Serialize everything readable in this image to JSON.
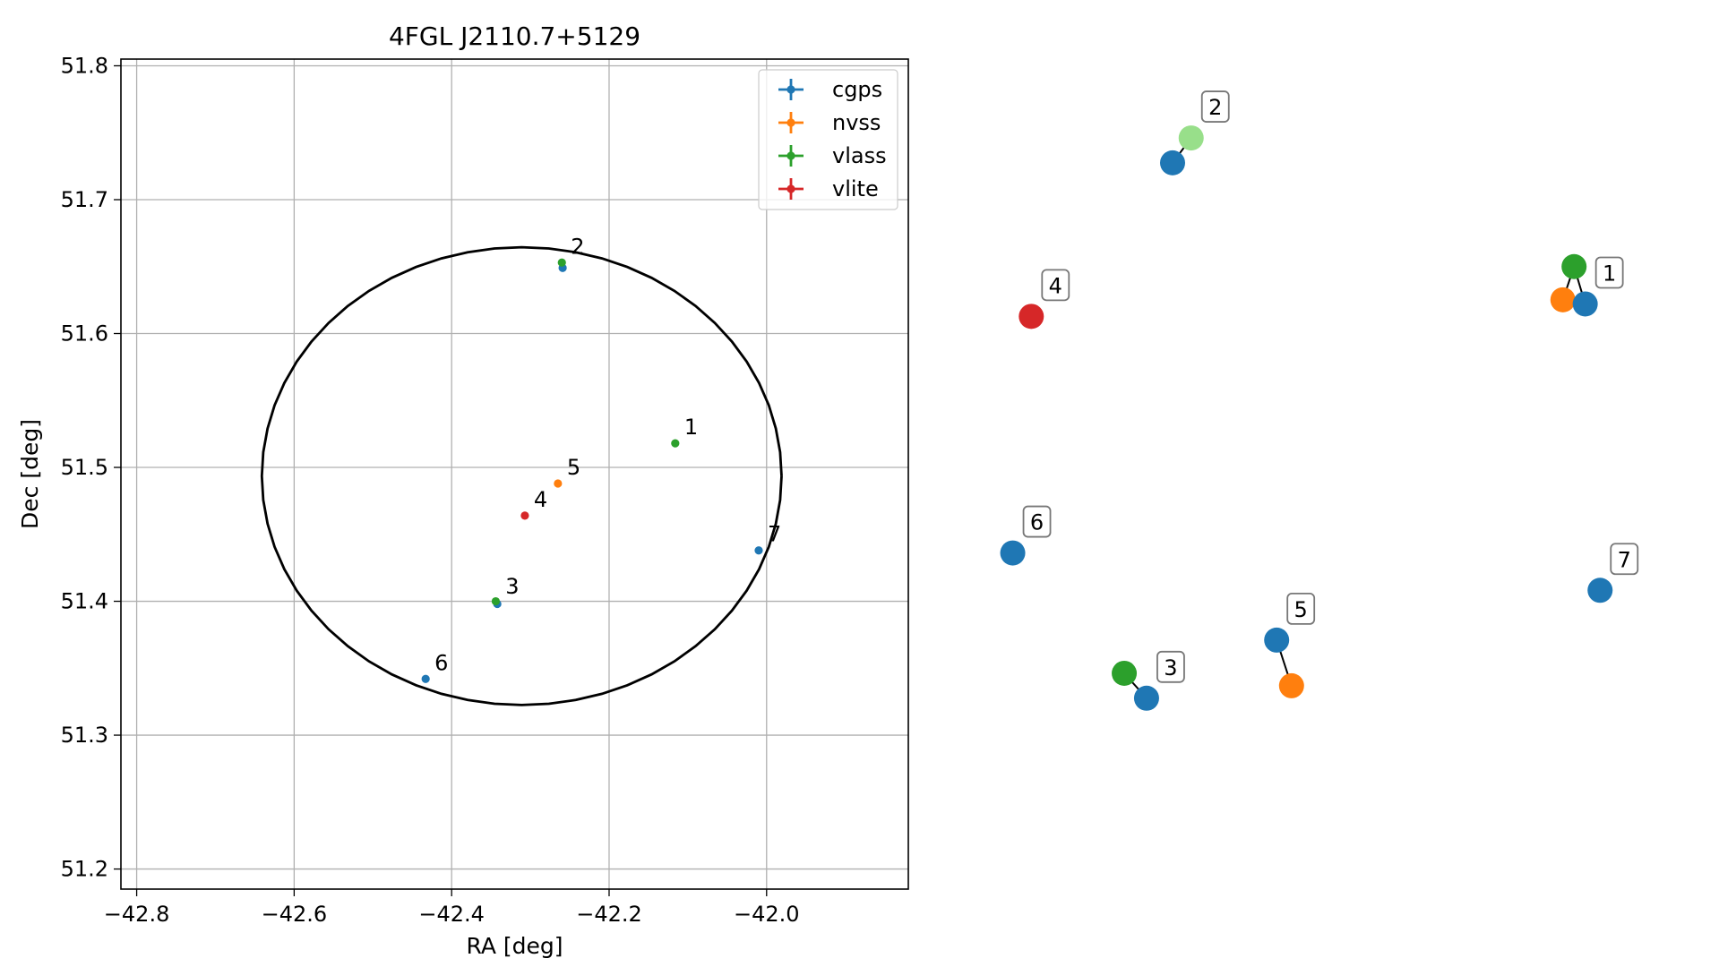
{
  "chart_data": [
    {
      "type": "scatter",
      "title": "4FGL J2110.7+5129",
      "xlabel": "RA [deg]",
      "ylabel": "Dec [deg]",
      "xlim": [
        -42.82,
        -41.82
      ],
      "ylim": [
        51.185,
        51.805
      ],
      "xticks": [
        -42.8,
        -42.6,
        -42.4,
        -42.2,
        -42.0
      ],
      "yticks": [
        51.2,
        51.3,
        51.4,
        51.5,
        51.6,
        51.7,
        51.8
      ],
      "xtick_labels": [
        "−42.8",
        "−42.6",
        "−42.4",
        "−42.2",
        "−42.0"
      ],
      "ytick_labels": [
        "51.2",
        "51.3",
        "51.4",
        "51.5",
        "51.6",
        "51.7",
        "51.8"
      ],
      "grid": true,
      "legend_position": "top-right",
      "series": [
        {
          "name": "cgps",
          "color": "#1f77b4",
          "points": [
            {
              "x": -42.259,
              "y": 51.649
            },
            {
              "x": -42.342,
              "y": 51.398
            },
            {
              "x": -42.433,
              "y": 51.342
            },
            {
              "x": -42.01,
              "y": 51.438
            }
          ]
        },
        {
          "name": "nvss",
          "color": "#ff7f0e",
          "points": [
            {
              "x": -42.265,
              "y": 51.488
            }
          ]
        },
        {
          "name": "vlass",
          "color": "#2ca02c",
          "points": [
            {
              "x": -42.26,
              "y": 51.653
            },
            {
              "x": -42.116,
              "y": 51.518
            },
            {
              "x": -42.344,
              "y": 51.4
            }
          ]
        },
        {
          "name": "vlite",
          "color": "#d62728",
          "points": [
            {
              "x": -42.307,
              "y": 51.464
            }
          ]
        }
      ],
      "annotations": [
        {
          "text": "1",
          "x": -42.116,
          "y": 51.518
        },
        {
          "text": "2",
          "x": -42.26,
          "y": 51.653
        },
        {
          "text": "3",
          "x": -42.343,
          "y": 51.399
        },
        {
          "text": "4",
          "x": -42.307,
          "y": 51.464
        },
        {
          "text": "5",
          "x": -42.265,
          "y": 51.488
        },
        {
          "text": "6",
          "x": -42.433,
          "y": 51.342
        },
        {
          "text": "7",
          "x": -42.01,
          "y": 51.438
        }
      ],
      "ellipse": {
        "center_x": -42.311,
        "center_y": 51.4935,
        "semi_axis_ra": 0.33,
        "semi_axis_dec": 0.171,
        "color": "#000000"
      }
    },
    {
      "type": "network",
      "nodes": [
        {
          "id": "a1",
          "color": "#2ca02c",
          "x": 0.84,
          "y": 0.75
        },
        {
          "id": "b1",
          "color": "#ff7f0e",
          "x": 0.825,
          "y": 0.71
        },
        {
          "id": "c1",
          "color": "#1f77b4",
          "x": 0.855,
          "y": 0.705,
          "label": "1"
        },
        {
          "id": "a2",
          "color": "#1f77b4",
          "x": 0.3,
          "y": 0.875
        },
        {
          "id": "b2",
          "color": "#98df8a",
          "x": 0.325,
          "y": 0.905,
          "label": "2"
        },
        {
          "id": "a3",
          "color": "#2ca02c",
          "x": 0.235,
          "y": 0.26
        },
        {
          "id": "b3",
          "color": "#1f77b4",
          "x": 0.265,
          "y": 0.23,
          "label": "3"
        },
        {
          "id": "a4",
          "color": "#d62728",
          "x": 0.11,
          "y": 0.69,
          "label": "4"
        },
        {
          "id": "a5",
          "color": "#1f77b4",
          "x": 0.44,
          "y": 0.3,
          "label": "5"
        },
        {
          "id": "b5",
          "color": "#ff7f0e",
          "x": 0.46,
          "y": 0.245
        },
        {
          "id": "a6",
          "color": "#1f77b4",
          "x": 0.085,
          "y": 0.405,
          "label": "6"
        },
        {
          "id": "a7",
          "color": "#1f77b4",
          "x": 0.875,
          "y": 0.36,
          "label": "7"
        }
      ],
      "edges": [
        [
          "a1",
          "b1"
        ],
        [
          "a1",
          "c1"
        ],
        [
          "b1",
          "c1"
        ],
        [
          "a2",
          "b2"
        ],
        [
          "a3",
          "b3"
        ],
        [
          "a5",
          "b5"
        ]
      ]
    }
  ]
}
